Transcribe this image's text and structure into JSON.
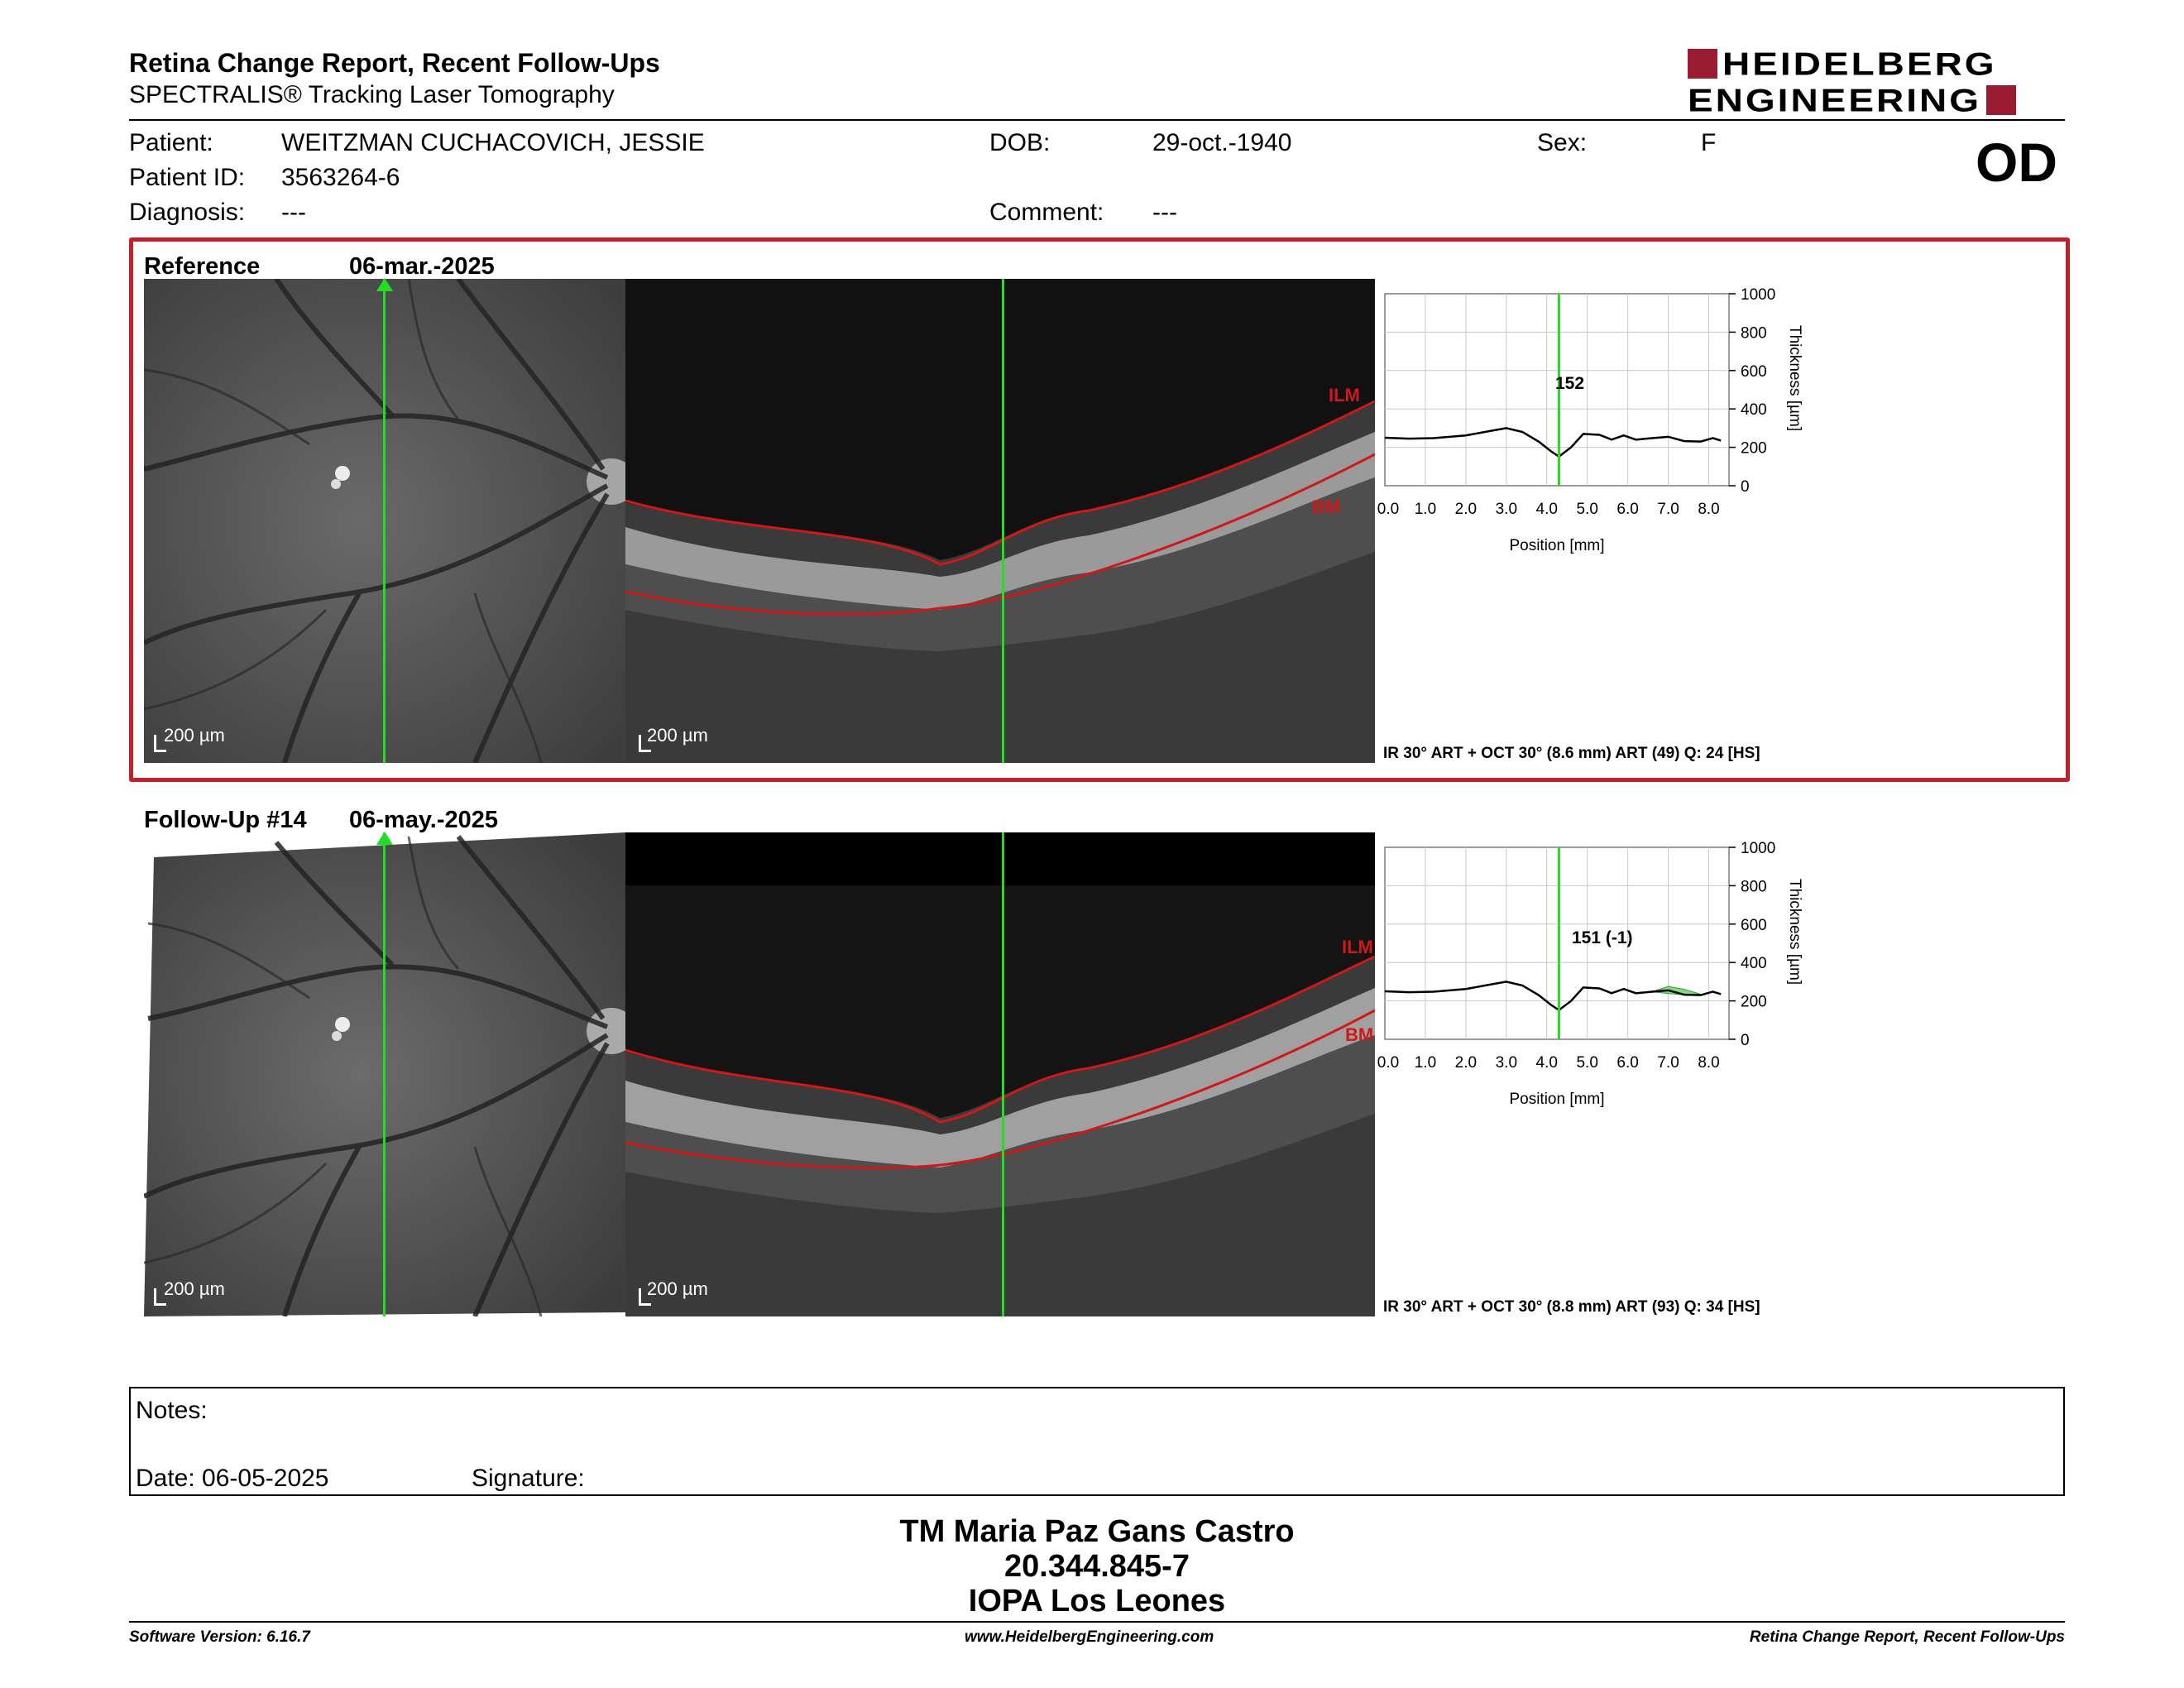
{
  "header": {
    "title": "Retina Change Report, Recent Follow-Ups",
    "subtitle": "SPECTRALIS® Tracking Laser Tomography",
    "logo_line1": "HEIDELBERG",
    "logo_line2": "ENGINEERING",
    "eye": "OD",
    "brand_color": "#9b1b30"
  },
  "patient": {
    "name_label": "Patient:",
    "name": "WEITZMAN CUCHACOVICH, JESSIE",
    "id_label": "Patient ID:",
    "id": "3563264-6",
    "diagnosis_label": "Diagnosis:",
    "diagnosis": "---",
    "dob_label": "DOB:",
    "dob": "29-oct.-1940",
    "comment_label": "Comment:",
    "comment": "---",
    "sex_label": "Sex:",
    "sex": "F"
  },
  "reference": {
    "label": "Reference",
    "date": "06-mar.-2025",
    "scale_ir": "200 µm",
    "scale_oct": "200 µm",
    "layer_top": "ILM",
    "layer_bottom": "BM",
    "thickness_value": "152",
    "caption": "IR 30° ART + OCT 30° (8.6 mm) ART (49) Q: 24 [HS]",
    "highlight_color": "#c0202a"
  },
  "followup": {
    "label": "Follow-Up #14",
    "date": "06-may.-2025",
    "scale_ir": "200 µm",
    "scale_oct": "200 µm",
    "layer_top": "ILM",
    "layer_bottom": "BM",
    "thickness_value": "151 (-1)",
    "caption": "IR 30° ART + OCT 30° (8.8 mm) ART (93) Q: 34 [HS]"
  },
  "graph_axes": {
    "y_ticks": [
      "1000",
      "800",
      "600",
      "400",
      "200",
      "0"
    ],
    "x_ticks": [
      "0.0",
      "1.0",
      "2.0",
      "3.0",
      "4.0",
      "5.0",
      "6.0",
      "7.0",
      "8.0"
    ],
    "ylabel": "Thickness [µm]",
    "xlabel": "Position [mm]"
  },
  "notes": {
    "notes_label": "Notes:",
    "date_label": "Date: 06-05-2025",
    "signature_label": "Signature:"
  },
  "signature_block": {
    "name": "TM Maria Paz Gans Castro",
    "id": "20.344.845-7",
    "institution": "IOPA Los Leones"
  },
  "footer": {
    "software": "Software Version: 6.16.7",
    "website": "www.HeidelbergEngineering.com",
    "report_name": "Retina Change Report, Recent Follow-Ups"
  },
  "colors": {
    "scan_line": "#22dd22",
    "layer_line": "#d01818",
    "change_fill": "#7fdc7f"
  }
}
